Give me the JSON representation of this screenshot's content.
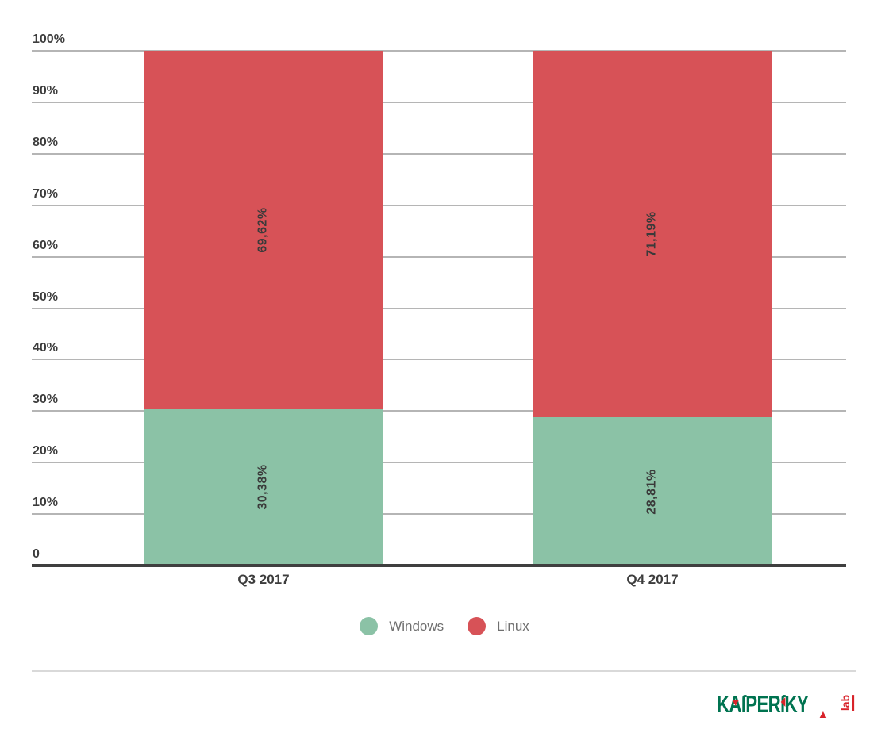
{
  "chart_data": {
    "type": "bar",
    "stacked": true,
    "title": "",
    "xlabel": "",
    "ylabel": "",
    "categories": [
      "Q3 2017",
      "Q4 2017"
    ],
    "series": [
      {
        "name": "Windows",
        "color": "#8bc2a6",
        "values": [
          30.38,
          28.81
        ],
        "labels": [
          "30,38%",
          "28,81%"
        ]
      },
      {
        "name": "Linux",
        "color": "#d75257",
        "values": [
          69.62,
          71.19
        ],
        "labels": [
          "69,62%",
          "71,19%"
        ]
      }
    ],
    "ylim": [
      0,
      100
    ],
    "yticks": [
      {
        "value": 100,
        "label": "100%"
      },
      {
        "value": 90,
        "label": "90%"
      },
      {
        "value": 80,
        "label": "80%"
      },
      {
        "value": 70,
        "label": "70%"
      },
      {
        "value": 60,
        "label": "60%"
      },
      {
        "value": 50,
        "label": "50%"
      },
      {
        "value": 40,
        "label": "40%"
      },
      {
        "value": 30,
        "label": "30%"
      },
      {
        "value": 20,
        "label": "20%"
      },
      {
        "value": 10,
        "label": "10%"
      },
      {
        "value": 0,
        "label": "0"
      }
    ],
    "grid": true,
    "legend_position": "bottom"
  },
  "branding": {
    "word": "KAſPERſKY",
    "suffix": "lab",
    "green": "#007350",
    "red": "#d8232a"
  }
}
